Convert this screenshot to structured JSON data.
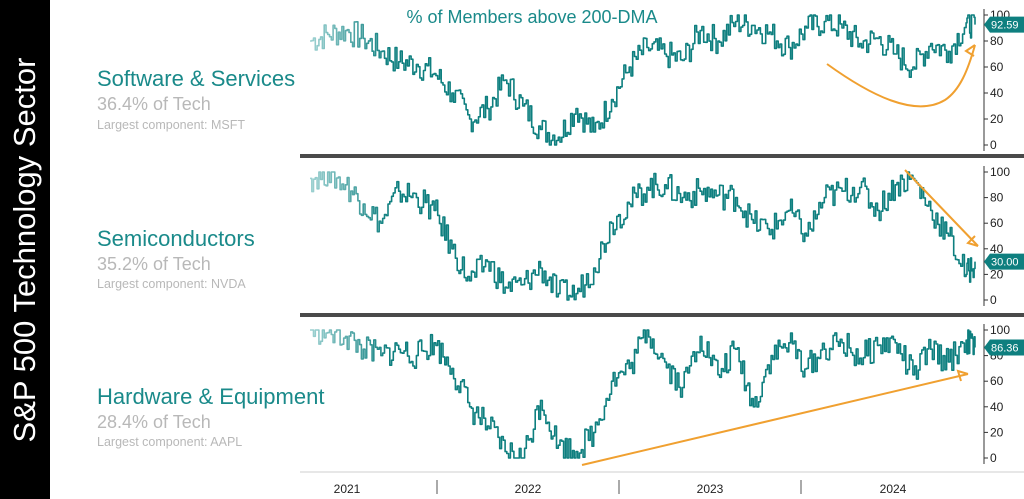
{
  "sidebar": {
    "title": "S&P 500 Technology Sector"
  },
  "chart_title": "% of Members above 200-DMA",
  "colors": {
    "line": "#0e7f7f",
    "line_faded": "#9ed2d2",
    "trend": "#f0a030",
    "label_bg": "#0e7f7f",
    "title": "#1a8a8a",
    "muted": "#b8b8b8"
  },
  "x_axis": {
    "ticks": [
      "2021",
      "2022",
      "2023",
      "2024"
    ]
  },
  "chart_data": [
    {
      "type": "line",
      "title": "Software & Services",
      "share": "36.4% of Tech",
      "component": "Largest component: MSFT",
      "last_value": "92.59",
      "ylim": [
        0,
        100
      ],
      "yticks": [
        0,
        20,
        40,
        60,
        80,
        100
      ],
      "trend": "curve-up",
      "x": [
        2020.9,
        2021.0,
        2021.1,
        2021.2,
        2021.3,
        2021.4,
        2021.5,
        2021.6,
        2021.7,
        2021.8,
        2021.9,
        2022.0,
        2022.1,
        2022.2,
        2022.3,
        2022.4,
        2022.5,
        2022.6,
        2022.7,
        2022.8,
        2022.9,
        2023.0,
        2023.1,
        2023.2,
        2023.3,
        2023.4,
        2023.5,
        2023.6,
        2023.7,
        2023.8,
        2023.9,
        2024.0,
        2024.1,
        2024.2,
        2024.3,
        2024.4,
        2024.5,
        2024.6,
        2024.65
      ],
      "values": [
        80,
        85,
        88,
        82,
        72,
        64,
        62,
        55,
        40,
        20,
        28,
        50,
        30,
        12,
        6,
        28,
        10,
        35,
        60,
        75,
        70,
        65,
        88,
        80,
        95,
        92,
        85,
        75,
        90,
        95,
        90,
        78,
        82,
        70,
        60,
        78,
        72,
        94,
        92.59
      ]
    },
    {
      "type": "line",
      "title": "Semiconductors",
      "share": "35.2% of Tech",
      "component": "Largest component: NVDA",
      "last_value": "30.00",
      "ylim": [
        0,
        100
      ],
      "yticks": [
        0,
        20,
        40,
        60,
        80,
        100
      ],
      "trend": "down",
      "x": [
        2020.9,
        2021.0,
        2021.1,
        2021.2,
        2021.3,
        2021.4,
        2021.5,
        2021.6,
        2021.7,
        2021.8,
        2021.9,
        2022.0,
        2022.1,
        2022.2,
        2022.3,
        2022.4,
        2022.5,
        2022.6,
        2022.7,
        2022.8,
        2022.9,
        2023.0,
        2023.1,
        2023.2,
        2023.3,
        2023.4,
        2023.5,
        2023.6,
        2023.7,
        2023.8,
        2023.9,
        2024.0,
        2024.1,
        2024.2,
        2024.3,
        2024.4,
        2024.5,
        2024.6,
        2024.65
      ],
      "values": [
        95,
        100,
        90,
        75,
        60,
        85,
        80,
        70,
        40,
        15,
        30,
        10,
        12,
        25,
        5,
        5,
        25,
        60,
        75,
        88,
        90,
        80,
        85,
        82,
        80,
        60,
        55,
        70,
        50,
        80,
        85,
        88,
        70,
        90,
        95,
        70,
        50,
        20,
        30
      ]
    },
    {
      "type": "line",
      "title": "Hardware & Equipment",
      "share": "28.4% of Tech",
      "component": "Largest component: AAPL",
      "last_value": "86.36",
      "ylim": [
        0,
        100
      ],
      "yticks": [
        0,
        20,
        40,
        60,
        80,
        100
      ],
      "trend": "up",
      "x": [
        2020.9,
        2021.0,
        2021.1,
        2021.2,
        2021.3,
        2021.4,
        2021.5,
        2021.6,
        2021.7,
        2021.8,
        2021.9,
        2022.0,
        2022.1,
        2022.2,
        2022.3,
        2022.4,
        2022.5,
        2022.6,
        2022.7,
        2022.8,
        2022.9,
        2023.0,
        2023.1,
        2023.2,
        2023.3,
        2023.4,
        2023.5,
        2023.6,
        2023.7,
        2023.8,
        2023.9,
        2024.0,
        2024.1,
        2024.2,
        2024.3,
        2024.4,
        2024.5,
        2024.6,
        2024.65
      ],
      "values": [
        100,
        98,
        95,
        85,
        80,
        85,
        80,
        90,
        70,
        40,
        25,
        5,
        0,
        45,
        10,
        5,
        20,
        60,
        70,
        100,
        75,
        55,
        95,
        65,
        85,
        40,
        80,
        90,
        70,
        85,
        90,
        78,
        88,
        90,
        65,
        85,
        75,
        92,
        86.36
      ]
    }
  ]
}
